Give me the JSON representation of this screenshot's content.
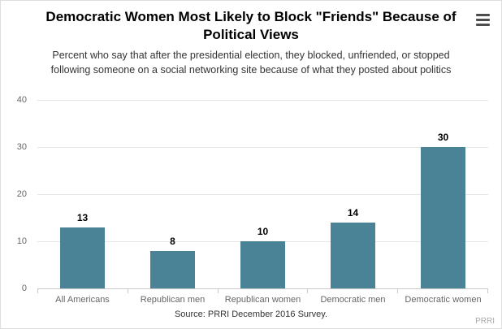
{
  "header": {
    "title": "Democratic Women Most Likely to Block \"Friends\" Because of Political Views",
    "subtitle": "Percent who say that after the presidential election, they blocked, unfriended, or stopped following someone on a social networking site because of what they posted about politics"
  },
  "menu": {
    "icon": "hamburger-icon"
  },
  "chart_data": {
    "type": "bar",
    "title": "Democratic Women Most Likely to Block \"Friends\" Because of Political Views",
    "subtitle": "Percent who say that after the presidential election, they blocked, unfriended, or stopped following someone on a social networking site because of what they posted about politics",
    "categories": [
      "All Americans",
      "Republican men",
      "Republican women",
      "Democratic men",
      "Democratic women"
    ],
    "values": [
      13,
      8,
      10,
      14,
      30
    ],
    "xlabel": "",
    "ylabel": "",
    "ylim": [
      0,
      40
    ],
    "yticks": [
      0,
      10,
      20,
      30,
      40
    ],
    "grid": true,
    "legend": "none",
    "data_labels": true,
    "bar_color": "#4a8396"
  },
  "footer": {
    "source": "Source: PRRI December 2016 Survey.",
    "credit": "PRRI"
  }
}
